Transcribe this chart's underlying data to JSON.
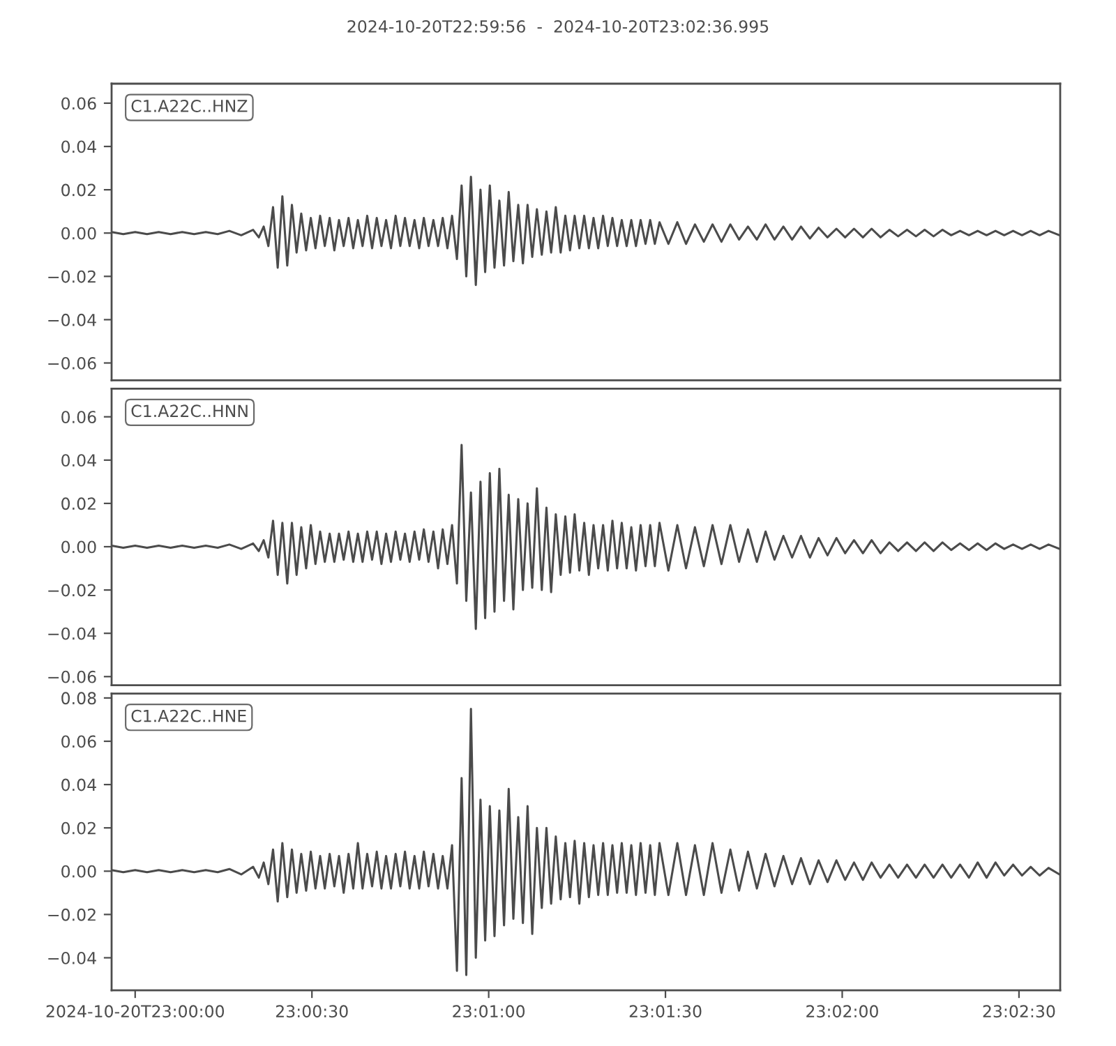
{
  "chart_data": [
    {
      "type": "line",
      "title": "2024-10-20T22:59:56  -  2024-10-20T23:02:36.995",
      "annotations": [
        "C1.A22C..HNZ"
      ],
      "tick_labels": "y",
      "xlim": [
        22.998889,
        23.04361
      ],
      "ylim": [
        -0.068,
        0.069
      ],
      "yticks": [
        {
          "value": -0.06,
          "label": "−0.06"
        },
        {
          "value": -0.04,
          "label": "−0.04"
        },
        {
          "value": -0.02,
          "label": "−0.02"
        },
        {
          "value": 0,
          "label": "0.00"
        },
        {
          "value": 0.02,
          "label": "0.02"
        },
        {
          "value": 0.04,
          "label": "0.04"
        },
        {
          "value": 0.06,
          "label": "0.06"
        }
      ],
      "x": [
        22.99889,
        22.99944,
        23.0,
        23.00056,
        23.00111,
        23.00167,
        23.00222,
        23.00278,
        23.00333,
        23.00389,
        23.00444,
        23.005,
        23.00556,
        23.00583,
        23.00606,
        23.00628,
        23.0065,
        23.00672,
        23.00694,
        23.00717,
        23.00739,
        23.00761,
        23.00783,
        23.00806,
        23.00828,
        23.0085,
        23.00872,
        23.00894,
        23.00917,
        23.00939,
        23.00961,
        23.00983,
        23.01006,
        23.01028,
        23.0105,
        23.01072,
        23.01094,
        23.01117,
        23.01139,
        23.01161,
        23.01183,
        23.01206,
        23.01228,
        23.0125,
        23.01272,
        23.01294,
        23.01317,
        23.01339,
        23.01361,
        23.01383,
        23.01406,
        23.01428,
        23.0145,
        23.01472,
        23.01494,
        23.01517,
        23.01539,
        23.01561,
        23.01583,
        23.01606,
        23.01628,
        23.0165,
        23.01672,
        23.01694,
        23.01717,
        23.01739,
        23.01761,
        23.01783,
        23.01806,
        23.01828,
        23.0185,
        23.01872,
        23.01894,
        23.01917,
        23.01939,
        23.01961,
        23.01983,
        23.02006,
        23.02028,
        23.0205,
        23.02072,
        23.02094,
        23.02117,
        23.02139,
        23.02161,
        23.02183,
        23.02206,
        23.02228,
        23.0225,
        23.02272,
        23.02294,
        23.02317,
        23.02339,
        23.02361,
        23.02383,
        23.02406,
        23.02428,
        23.0245,
        23.02472,
        23.02514,
        23.02556,
        23.02597,
        23.02639,
        23.02681,
        23.02722,
        23.02764,
        23.02806,
        23.02847,
        23.02889,
        23.02931,
        23.02972,
        23.03014,
        23.03056,
        23.03097,
        23.03139,
        23.03181,
        23.03222,
        23.03264,
        23.03306,
        23.03347,
        23.03389,
        23.03431,
        23.03472,
        23.03514,
        23.03556,
        23.03597,
        23.03639,
        23.03681,
        23.03722,
        23.03764,
        23.03806,
        23.03847,
        23.03889,
        23.03931,
        23.03972,
        23.04014,
        23.04056,
        23.04097,
        23.04139,
        23.04181,
        23.04222,
        23.04264,
        23.04306,
        23.04358
      ],
      "series": [
        {
          "color": "#4b4b4b",
          "values": [
            0.0005,
            -0.0005,
            0.0005,
            -0.0005,
            0.0005,
            -0.0005,
            0.0005,
            -0.0005,
            0.0005,
            -0.0005,
            0.001,
            -0.001,
            0.0015,
            -0.002,
            0.003,
            -0.006,
            0.012,
            -0.016,
            0.017,
            -0.015,
            0.013,
            -0.009,
            0.009,
            -0.008,
            0.007,
            -0.007,
            0.008,
            -0.006,
            0.007,
            -0.008,
            0.006,
            -0.006,
            0.007,
            -0.007,
            0.006,
            -0.006,
            0.008,
            -0.007,
            0.007,
            -0.006,
            0.006,
            -0.007,
            0.008,
            -0.006,
            0.007,
            -0.006,
            0.006,
            -0.007,
            0.007,
            -0.006,
            0.006,
            -0.006,
            0.007,
            -0.007,
            0.008,
            -0.012,
            0.022,
            -0.02,
            0.026,
            -0.024,
            0.02,
            -0.018,
            0.022,
            -0.016,
            0.015,
            -0.015,
            0.019,
            -0.013,
            0.013,
            -0.014,
            0.013,
            -0.011,
            0.011,
            -0.01,
            0.01,
            -0.009,
            0.012,
            -0.009,
            0.008,
            -0.008,
            0.008,
            -0.007,
            0.008,
            -0.007,
            0.007,
            -0.007,
            0.008,
            -0.006,
            0.007,
            -0.006,
            0.006,
            -0.006,
            0.006,
            -0.006,
            0.006,
            -0.005,
            0.006,
            -0.005,
            0.005,
            -0.005,
            0.005,
            -0.005,
            0.004,
            -0.004,
            0.004,
            -0.004,
            0.004,
            -0.003,
            0.003,
            -0.003,
            0.004,
            -0.003,
            0.003,
            -0.003,
            0.003,
            -0.0025,
            0.0025,
            -0.002,
            0.002,
            -0.002,
            0.002,
            -0.002,
            0.002,
            -0.002,
            0.0015,
            -0.0015,
            0.0015,
            -0.0015,
            0.0015,
            -0.0015,
            0.0015,
            -0.001,
            0.001,
            -0.001,
            0.001,
            -0.001,
            0.001,
            -0.001,
            0.001,
            -0.001,
            0.001,
            -0.001,
            0.001,
            -0.001
          ]
        }
      ]
    },
    {
      "type": "line",
      "annotations": [
        "C1.A22C..HNN"
      ],
      "tick_labels": "y",
      "xlim": [
        22.998889,
        23.04361
      ],
      "ylim": [
        -0.064,
        0.073
      ],
      "yticks": [
        {
          "value": -0.06,
          "label": "−0.06"
        },
        {
          "value": -0.04,
          "label": "−0.04"
        },
        {
          "value": -0.02,
          "label": "−0.02"
        },
        {
          "value": 0,
          "label": "0.00"
        },
        {
          "value": 0.02,
          "label": "0.02"
        },
        {
          "value": 0.04,
          "label": "0.04"
        },
        {
          "value": 0.06,
          "label": "0.06"
        }
      ],
      "x": [
        22.99889,
        22.99944,
        23.0,
        23.00056,
        23.00111,
        23.00167,
        23.00222,
        23.00278,
        23.00333,
        23.00389,
        23.00444,
        23.005,
        23.00556,
        23.00583,
        23.00606,
        23.00628,
        23.0065,
        23.00672,
        23.00694,
        23.00717,
        23.00739,
        23.00761,
        23.00783,
        23.00806,
        23.00828,
        23.0085,
        23.00872,
        23.00894,
        23.00917,
        23.00939,
        23.00961,
        23.00983,
        23.01006,
        23.01028,
        23.0105,
        23.01072,
        23.01094,
        23.01117,
        23.01139,
        23.01161,
        23.01183,
        23.01206,
        23.01228,
        23.0125,
        23.01272,
        23.01294,
        23.01317,
        23.01339,
        23.01361,
        23.01383,
        23.01406,
        23.01428,
        23.0145,
        23.01472,
        23.01494,
        23.01517,
        23.01539,
        23.01561,
        23.01583,
        23.01606,
        23.01628,
        23.0165,
        23.01672,
        23.01694,
        23.01717,
        23.01739,
        23.01761,
        23.01783,
        23.01806,
        23.01828,
        23.0185,
        23.01872,
        23.01894,
        23.01917,
        23.01939,
        23.01961,
        23.01983,
        23.02006,
        23.02028,
        23.0205,
        23.02072,
        23.02094,
        23.02117,
        23.02139,
        23.02161,
        23.02183,
        23.02206,
        23.02228,
        23.0225,
        23.02272,
        23.02294,
        23.02317,
        23.02339,
        23.02361,
        23.02383,
        23.02406,
        23.02428,
        23.0245,
        23.02472,
        23.02514,
        23.02556,
        23.02597,
        23.02639,
        23.02681,
        23.02722,
        23.02764,
        23.02806,
        23.02847,
        23.02889,
        23.02931,
        23.02972,
        23.03014,
        23.03056,
        23.03097,
        23.03139,
        23.03181,
        23.03222,
        23.03264,
        23.03306,
        23.03347,
        23.03389,
        23.03431,
        23.03472,
        23.03514,
        23.03556,
        23.03597,
        23.03639,
        23.03681,
        23.03722,
        23.03764,
        23.03806,
        23.03847,
        23.03889,
        23.03931,
        23.03972,
        23.04014,
        23.04056,
        23.04097,
        23.04139,
        23.04181,
        23.04222,
        23.04264,
        23.04306,
        23.04358
      ],
      "series": [
        {
          "color": "#4b4b4b",
          "values": [
            0.0005,
            -0.0005,
            0.0005,
            -0.0005,
            0.0005,
            -0.0005,
            0.0005,
            -0.0005,
            0.0005,
            -0.0005,
            0.001,
            -0.001,
            0.0015,
            -0.002,
            0.003,
            -0.005,
            0.012,
            -0.013,
            0.011,
            -0.017,
            0.011,
            -0.013,
            0.009,
            -0.01,
            0.01,
            -0.008,
            0.007,
            -0.007,
            0.006,
            -0.007,
            0.006,
            -0.006,
            0.007,
            -0.007,
            0.006,
            -0.007,
            0.007,
            -0.006,
            0.007,
            -0.008,
            0.006,
            -0.007,
            0.007,
            -0.006,
            0.006,
            -0.007,
            0.007,
            -0.006,
            0.008,
            -0.007,
            0.007,
            -0.01,
            0.008,
            -0.008,
            0.01,
            -0.017,
            0.047,
            -0.025,
            0.025,
            -0.038,
            0.03,
            -0.033,
            0.034,
            -0.03,
            0.036,
            -0.025,
            0.024,
            -0.029,
            0.022,
            -0.02,
            0.02,
            -0.019,
            0.027,
            -0.02,
            0.018,
            -0.021,
            0.015,
            -0.013,
            0.014,
            -0.012,
            0.015,
            -0.011,
            0.011,
            -0.013,
            0.01,
            -0.01,
            0.01,
            -0.011,
            0.012,
            -0.01,
            0.011,
            -0.01,
            0.009,
            -0.011,
            0.01,
            -0.009,
            0.01,
            -0.009,
            0.011,
            -0.011,
            0.01,
            -0.01,
            0.009,
            -0.009,
            0.01,
            -0.008,
            0.01,
            -0.007,
            0.008,
            -0.007,
            0.007,
            -0.006,
            0.005,
            -0.005,
            0.005,
            -0.005,
            0.004,
            -0.004,
            0.004,
            -0.003,
            0.003,
            -0.003,
            0.003,
            -0.003,
            0.002,
            -0.002,
            0.002,
            -0.002,
            0.002,
            -0.002,
            0.002,
            -0.0015,
            0.0015,
            -0.0015,
            0.0015,
            -0.0015,
            0.0015,
            -0.001,
            0.001,
            -0.001,
            0.001,
            -0.001,
            0.001,
            -0.001
          ]
        }
      ]
    },
    {
      "type": "line",
      "annotations": [
        "C1.A22C..HNE"
      ],
      "xlim": [
        22.998889,
        23.04361
      ],
      "ylim": [
        -0.055,
        0.082
      ],
      "xticks": [
        {
          "value": 23,
          "label": "2024-10-20T23:00:00"
        },
        {
          "value": 23.0083333,
          "label": "23:00:30"
        },
        {
          "value": 23.0166667,
          "label": "23:01:00"
        },
        {
          "value": 23.025,
          "label": "23:01:30"
        },
        {
          "value": 23.0333333,
          "label": "23:02:00"
        },
        {
          "value": 23.0416667,
          "label": "23:02:30"
        }
      ],
      "yticks": [
        {
          "value": -0.04,
          "label": "−0.04"
        },
        {
          "value": -0.02,
          "label": "−0.02"
        },
        {
          "value": 0,
          "label": "0.00"
        },
        {
          "value": 0.02,
          "label": "0.02"
        },
        {
          "value": 0.04,
          "label": "0.04"
        },
        {
          "value": 0.06,
          "label": "0.06"
        },
        {
          "value": 0.08,
          "label": "0.08"
        }
      ],
      "x": [
        22.99889,
        22.99944,
        23.0,
        23.00056,
        23.00111,
        23.00167,
        23.00222,
        23.00278,
        23.00333,
        23.00389,
        23.00444,
        23.005,
        23.00556,
        23.00583,
        23.00606,
        23.00628,
        23.0065,
        23.00672,
        23.00694,
        23.00717,
        23.00739,
        23.00761,
        23.00783,
        23.00806,
        23.00828,
        23.0085,
        23.00872,
        23.00894,
        23.00917,
        23.00939,
        23.00961,
        23.00983,
        23.01006,
        23.01028,
        23.0105,
        23.01072,
        23.01094,
        23.01117,
        23.01139,
        23.01161,
        23.01183,
        23.01206,
        23.01228,
        23.0125,
        23.01272,
        23.01294,
        23.01317,
        23.01339,
        23.01361,
        23.01383,
        23.01406,
        23.01428,
        23.0145,
        23.01472,
        23.01494,
        23.01517,
        23.01539,
        23.01561,
        23.01583,
        23.01606,
        23.01628,
        23.0165,
        23.01672,
        23.01694,
        23.01717,
        23.01739,
        23.01761,
        23.01783,
        23.01806,
        23.01828,
        23.0185,
        23.01872,
        23.01894,
        23.01917,
        23.01939,
        23.01961,
        23.01983,
        23.02006,
        23.02028,
        23.0205,
        23.02072,
        23.02094,
        23.02117,
        23.02139,
        23.02161,
        23.02183,
        23.02206,
        23.02228,
        23.0225,
        23.02272,
        23.02294,
        23.02317,
        23.02339,
        23.02361,
        23.02383,
        23.02406,
        23.02428,
        23.0245,
        23.02472,
        23.02514,
        23.02556,
        23.02597,
        23.02639,
        23.02681,
        23.02722,
        23.02764,
        23.02806,
        23.02847,
        23.02889,
        23.02931,
        23.02972,
        23.03014,
        23.03056,
        23.03097,
        23.03139,
        23.03181,
        23.03222,
        23.03264,
        23.03306,
        23.03347,
        23.03389,
        23.03431,
        23.03472,
        23.03514,
        23.03556,
        23.03597,
        23.03639,
        23.03681,
        23.03722,
        23.03764,
        23.03806,
        23.03847,
        23.03889,
        23.03931,
        23.03972,
        23.04014,
        23.04056,
        23.04097,
        23.04139,
        23.04181,
        23.04222,
        23.04264,
        23.04306,
        23.04358
      ],
      "series": [
        {
          "color": "#4b4b4b",
          "values": [
            0.0005,
            -0.0005,
            0.0005,
            -0.0005,
            0.0005,
            -0.0005,
            0.0005,
            -0.0005,
            0.0005,
            -0.0005,
            0.001,
            -0.0015,
            0.002,
            -0.003,
            0.004,
            -0.006,
            0.01,
            -0.014,
            0.013,
            -0.012,
            0.01,
            -0.01,
            0.008,
            -0.009,
            0.009,
            -0.008,
            0.007,
            -0.008,
            0.008,
            -0.007,
            0.007,
            -0.01,
            0.008,
            -0.008,
            0.013,
            -0.008,
            0.008,
            -0.007,
            0.009,
            -0.008,
            0.007,
            -0.008,
            0.008,
            -0.007,
            0.009,
            -0.008,
            0.007,
            -0.008,
            0.009,
            -0.007,
            0.008,
            -0.008,
            0.007,
            -0.008,
            0.012,
            -0.046,
            0.043,
            -0.048,
            0.075,
            -0.04,
            0.033,
            -0.032,
            0.03,
            -0.03,
            0.028,
            -0.025,
            0.038,
            -0.022,
            0.025,
            -0.024,
            0.03,
            -0.029,
            0.02,
            -0.017,
            0.02,
            -0.015,
            0.016,
            -0.013,
            0.013,
            -0.012,
            0.014,
            -0.015,
            0.013,
            -0.012,
            0.012,
            -0.011,
            0.013,
            -0.011,
            0.012,
            -0.01,
            0.013,
            -0.01,
            0.012,
            -0.011,
            0.013,
            -0.01,
            0.012,
            -0.011,
            0.013,
            -0.011,
            0.013,
            -0.011,
            0.012,
            -0.011,
            0.013,
            -0.01,
            0.01,
            -0.009,
            0.009,
            -0.008,
            0.008,
            -0.007,
            0.007,
            -0.006,
            0.006,
            -0.006,
            0.005,
            -0.005,
            0.005,
            -0.004,
            0.004,
            -0.004,
            0.004,
            -0.003,
            0.003,
            -0.003,
            0.003,
            -0.003,
            0.003,
            -0.003,
            0.003,
            -0.003,
            0.003,
            -0.003,
            0.004,
            -0.003,
            0.004,
            -0.002,
            0.003,
            -0.002,
            0.002,
            -0.002,
            0.0015,
            -0.0015
          ]
        }
      ]
    }
  ]
}
